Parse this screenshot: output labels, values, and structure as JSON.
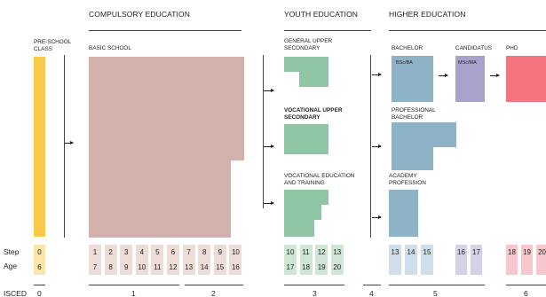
{
  "headers": {
    "compulsory": "COMPULSORY EDUCATION",
    "youth": "YOUTH EDUCATION",
    "higher": "HIGHER EDUCATION"
  },
  "labels": {
    "preschool": [
      "PRE-SCHOOL",
      "CLASS"
    ],
    "basic": "BASIC SCHOOL",
    "general_upper": [
      "GENERAL UPPER",
      "SECONDARY"
    ],
    "vocational_upper": [
      "VOCATIONAL  UPPER",
      "SECONDARY"
    ],
    "vet": [
      "VOCATIONAL EDUCATION",
      "AND TRAINING"
    ],
    "bachelor": "BACHELOR",
    "candidatus": "CANDIDATUS",
    "phd": "PHD",
    "prof_bachelor": [
      "PROFESSIONAL",
      "BACHELOR"
    ],
    "academy": [
      "ACADEMY",
      "PROFESSION"
    ],
    "bsc": "BSc/BA",
    "msc": "MSc/MA"
  },
  "colors": {
    "preschool": "#f8c94a",
    "basic": "#d2b1aa",
    "basic_cell": "#eddcd7",
    "youth": "#8fc7a5",
    "youth_cell": "#cfe5d6",
    "higher": "#8eb3c6",
    "higher_cell": "#cfdee8",
    "candidatus": "#a7a2cc",
    "candidatus_cell": "#d5d1e6",
    "phd": "#f47480",
    "phd_cell": "#f6c8cd",
    "preschool_cell": "#fbe6a8"
  },
  "rows": {
    "step_label": "Step",
    "age_label": "Age",
    "isced_label": "ISCED"
  },
  "cells": {
    "pre": {
      "step": "0",
      "age": "6"
    },
    "basic": [
      {
        "step": "1",
        "age": "7"
      },
      {
        "step": "2",
        "age": "8"
      },
      {
        "step": "3",
        "age": "9"
      },
      {
        "step": "4",
        "age": "10"
      },
      {
        "step": "5",
        "age": "11"
      },
      {
        "step": "6",
        "age": "12"
      },
      {
        "step": "7",
        "age": "13"
      },
      {
        "step": "8",
        "age": "14"
      },
      {
        "step": "9",
        "age": "15"
      },
      {
        "step": "10",
        "age": "16"
      }
    ],
    "youth": [
      {
        "step": "10",
        "age": "17"
      },
      {
        "step": "11",
        "age": "18"
      },
      {
        "step": "12",
        "age": "19"
      },
      {
        "step": "13",
        "age": "20"
      }
    ],
    "bachelor": [
      {
        "step": "13"
      },
      {
        "step": "14"
      },
      {
        "step": "15"
      }
    ],
    "candidatus": [
      {
        "step": "16"
      },
      {
        "step": "17"
      }
    ],
    "phd": [
      {
        "step": "18"
      },
      {
        "step": "19"
      },
      {
        "step": "20"
      }
    ]
  },
  "isced": [
    "0",
    "1",
    "2",
    "3",
    "4",
    "5",
    "6"
  ]
}
